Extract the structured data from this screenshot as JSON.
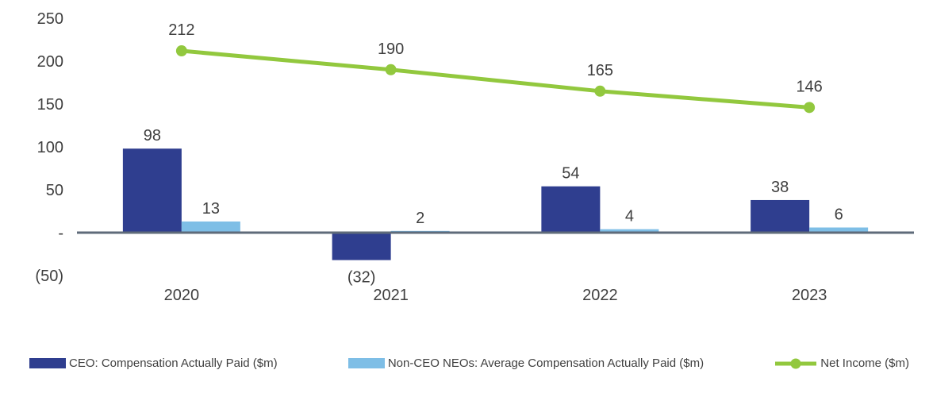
{
  "chart_data": {
    "type": "combo-bar-line",
    "categories": [
      "2020",
      "2021",
      "2022",
      "2023"
    ],
    "series": [
      {
        "name": "CEO: Compensation Actually Paid ($m)",
        "type": "bar",
        "color": "#2F3E8F",
        "values": [
          98,
          -32,
          54,
          38
        ],
        "value_labels": [
          "98",
          "(32)",
          "54",
          "38"
        ]
      },
      {
        "name": "Non-CEO NEOs: Average Compensation Actually Paid ($m)",
        "type": "bar",
        "color": "#7EBEE6",
        "values": [
          13,
          2,
          4,
          6
        ],
        "value_labels": [
          "13",
          "2",
          "4",
          "6"
        ]
      },
      {
        "name": "Net Income ($m)",
        "type": "line",
        "color": "#92C83E",
        "values": [
          212,
          190,
          165,
          146
        ],
        "value_labels": [
          "212",
          "190",
          "165",
          "146"
        ]
      }
    ],
    "y_axis": {
      "min": -50,
      "max": 250,
      "ticks": [
        250,
        200,
        150,
        100,
        50,
        0,
        -50
      ],
      "tick_labels": [
        "250",
        "200",
        "150",
        "100",
        "50",
        "-",
        "(50)"
      ]
    },
    "grid": false,
    "legend_position": "bottom",
    "axis_color": "#5F6B7A",
    "label_color": "#3F3F3F",
    "background_color": "#FFFFFF"
  }
}
